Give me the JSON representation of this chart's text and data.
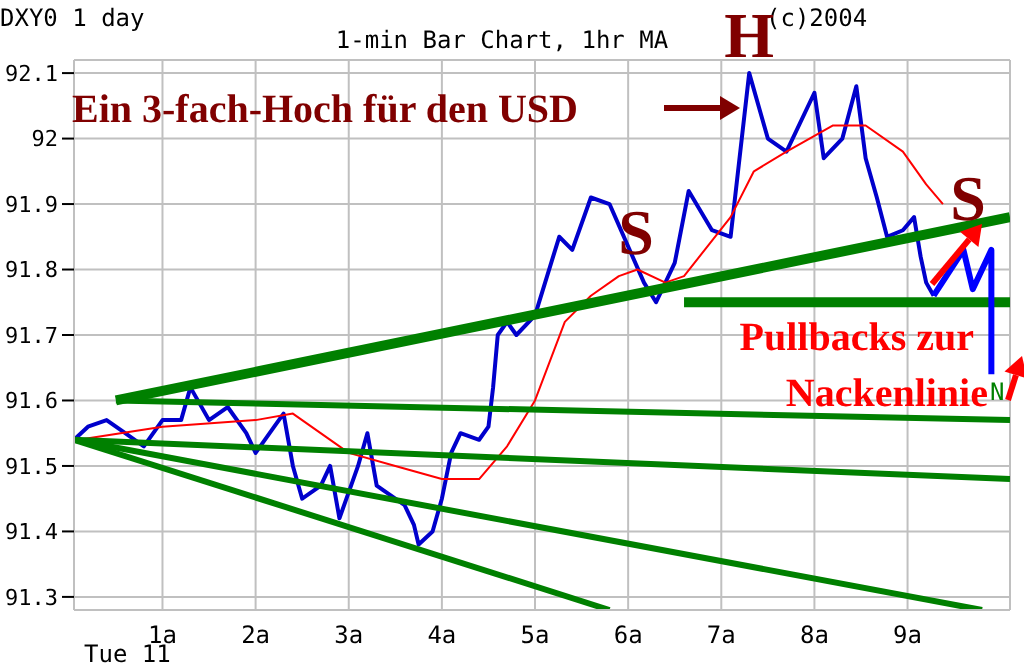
{
  "chart_data": {
    "type": "line",
    "title": "1-min Bar Chart, 1hr MA",
    "subtitle": "DXY0 1 day",
    "annotations": [
      "(c)2004",
      "Tue 11",
      "Ein 3-fach-Hoch für den USD",
      "Pullbacks zur Nackenlinie",
      "N",
      "S",
      "S",
      {
        "text": "H",
        "x": 7.3,
        "y": 92.1
      }
    ],
    "xlim": [
      0.05,
      10.1
    ],
    "xticks": [
      {
        "value": 1,
        "label": "1a"
      },
      {
        "value": 2,
        "label": "2a"
      },
      {
        "value": 3,
        "label": "3a"
      },
      {
        "value": 4,
        "label": "4a"
      },
      {
        "value": 5,
        "label": "5a"
      },
      {
        "value": 6,
        "label": "6a"
      },
      {
        "value": 7,
        "label": "7a"
      },
      {
        "value": 8,
        "label": "8a"
      },
      {
        "value": 9,
        "label": "9a"
      }
    ],
    "ylim": [
      91.28,
      92.12
    ],
    "yticks": [
      91.3,
      91.4,
      91.5,
      91.6,
      91.7,
      91.8,
      91.9,
      92,
      92.1
    ],
    "grid": true,
    "line_style": "solid",
    "series": [
      {
        "color": "#0000cc",
        "x": [
          0.05,
          0.2,
          0.4,
          0.6,
          0.8,
          1.0,
          1.2,
          1.3,
          1.5,
          1.7,
          1.9,
          2.0,
          2.2,
          2.3,
          2.4,
          2.5,
          2.7,
          2.8,
          2.9,
          3.0,
          3.1,
          3.2,
          3.3,
          3.5,
          3.6,
          3.7,
          3.75,
          3.9,
          4.0,
          4.1,
          4.2,
          4.4,
          4.5,
          4.55,
          4.6,
          4.7,
          4.8,
          5.0,
          5.26,
          5.4,
          5.6,
          5.8,
          6.17,
          6.3,
          6.5,
          6.65,
          6.9,
          7.1,
          7.3,
          7.5,
          7.7,
          8.0,
          8.1,
          8.3,
          8.45,
          8.55,
          8.67,
          8.78,
          8.95,
          9.07,
          9.14,
          9.2,
          9.28
        ],
        "values": [
          91.54,
          91.56,
          91.57,
          91.55,
          91.53,
          91.57,
          91.57,
          91.62,
          91.57,
          91.59,
          91.55,
          91.52,
          91.56,
          91.58,
          91.5,
          91.45,
          91.47,
          91.5,
          91.42,
          91.46,
          91.5,
          91.55,
          91.47,
          91.45,
          91.44,
          91.41,
          91.38,
          91.4,
          91.45,
          91.52,
          91.55,
          91.54,
          91.56,
          91.62,
          91.7,
          91.72,
          91.7,
          91.73,
          91.85,
          91.83,
          91.91,
          91.9,
          91.78,
          91.75,
          91.81,
          91.92,
          91.86,
          91.85,
          92.1,
          92.0,
          91.98,
          92.07,
          91.97,
          92.0,
          92.08,
          91.97,
          91.91,
          91.85,
          91.86,
          91.88,
          91.82,
          91.78,
          91.76
        ]
      },
      {
        "color": "#ff0000",
        "x": [
          0.1,
          1.0,
          2.0,
          2.4,
          3.0,
          3.5,
          4.0,
          4.4,
          4.7,
          5.0,
          5.32,
          5.6,
          5.9,
          6.1,
          6.4,
          6.6,
          7.1,
          7.35,
          7.7,
          8.2,
          8.55,
          8.95,
          9.2,
          9.38
        ],
        "values": [
          91.54,
          91.56,
          91.57,
          91.58,
          91.52,
          91.5,
          91.48,
          91.48,
          91.53,
          91.6,
          91.72,
          91.76,
          91.79,
          91.8,
          91.78,
          91.79,
          91.88,
          91.95,
          91.98,
          92.02,
          92.02,
          91.98,
          91.93,
          91.9
        ]
      },
      {
        "color": "#008000",
        "x": [
          0.5,
          10.1
        ],
        "values": [
          91.6,
          91.88
        ]
      },
      {
        "color": "#008000",
        "x": [
          6.6,
          10.1
        ],
        "values": [
          91.75,
          91.75
        ]
      },
      {
        "color": "#008000",
        "x": [
          0.5,
          10.1
        ],
        "values": [
          91.6,
          91.57
        ]
      },
      {
        "color": "#008000",
        "x": [
          0.05,
          10.1
        ],
        "values": [
          91.54,
          91.48
        ]
      },
      {
        "color": "#008000",
        "x": [
          0.05,
          9.8
        ],
        "values": [
          91.54,
          91.28
        ]
      },
      {
        "color": "#008000",
        "x": [
          0.05,
          5.8
        ],
        "values": [
          91.54,
          91.28
        ]
      },
      {
        "color": "#0000ff",
        "x": [
          9.28,
          9.6,
          9.7,
          9.9,
          9.9
        ],
        "values": [
          91.76,
          91.83,
          91.77,
          91.83,
          91.64
        ]
      }
    ]
  }
}
